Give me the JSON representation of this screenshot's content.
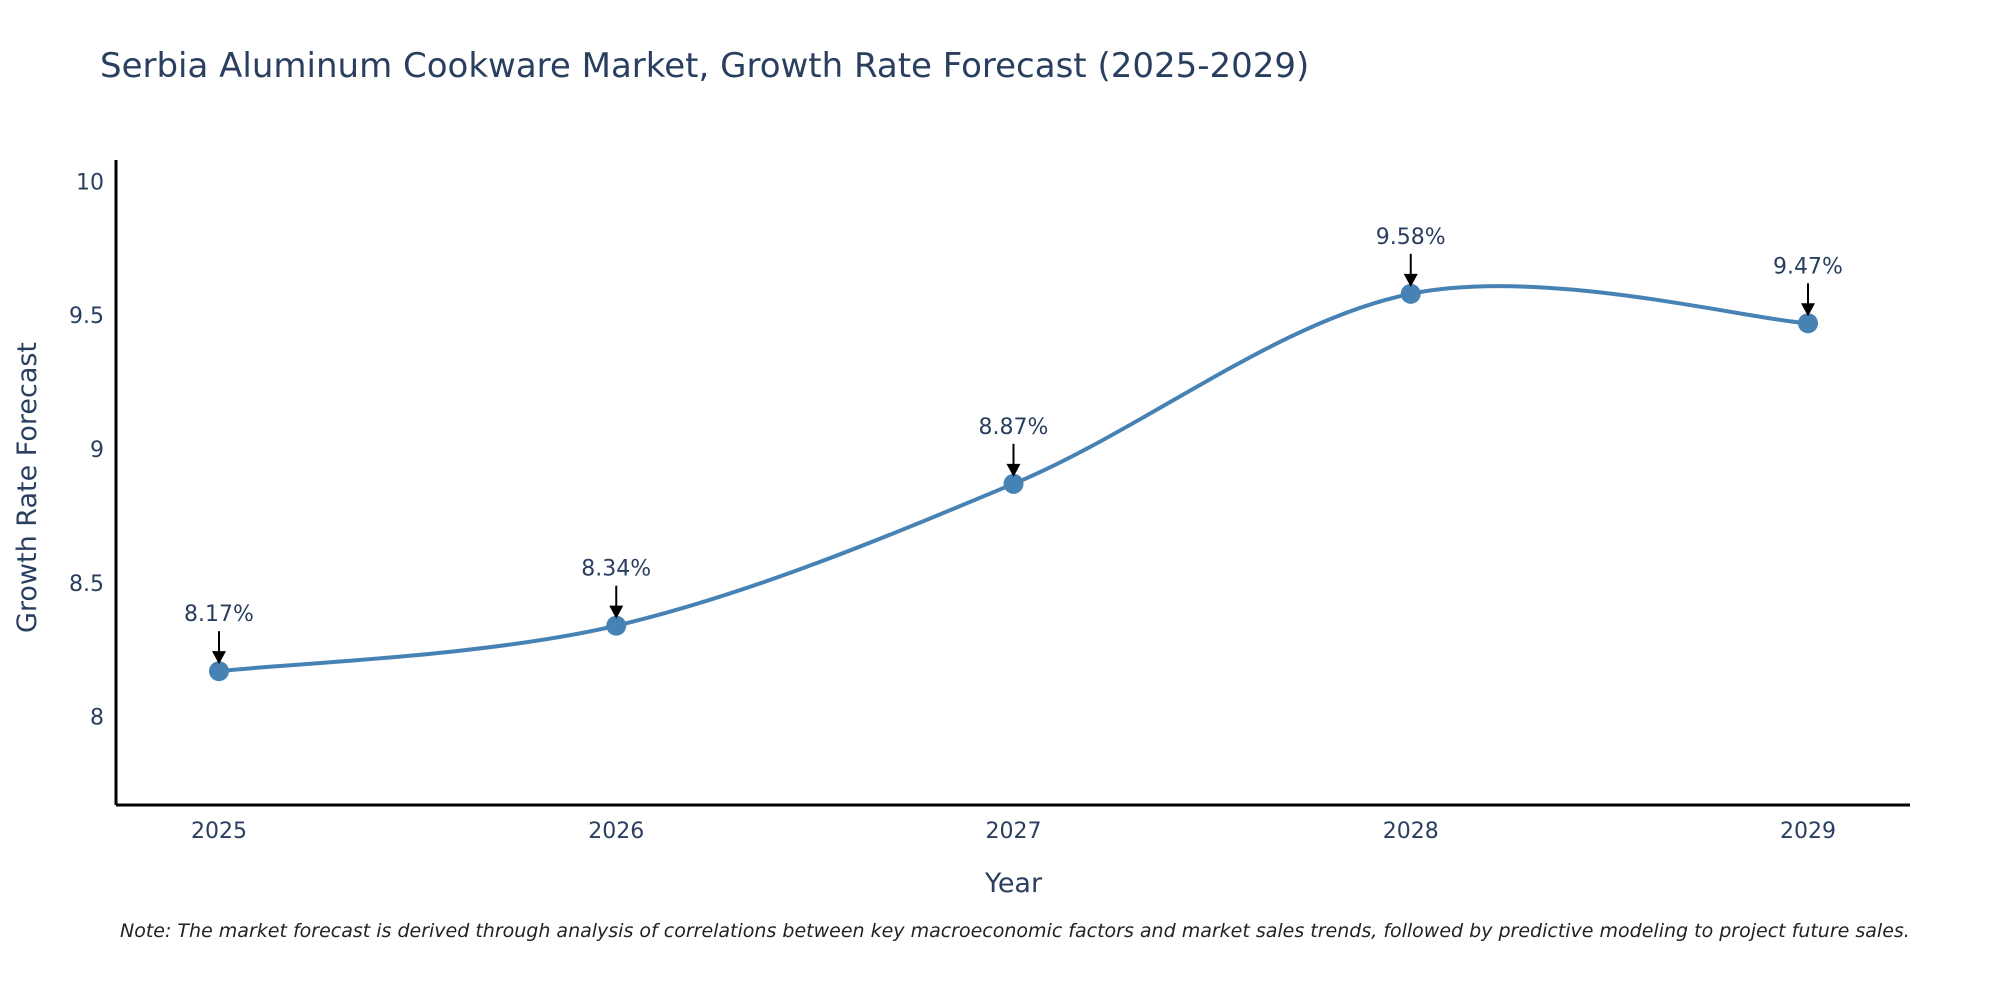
{
  "chart_data": {
    "type": "line",
    "title": "Serbia Aluminum Cookware Market, Growth Rate Forecast (2025-2029)",
    "xlabel": "Year",
    "ylabel": "Growth Rate Forecast",
    "x": [
      "2025",
      "2026",
      "2027",
      "2028",
      "2029"
    ],
    "values": [
      8.17,
      8.34,
      8.87,
      9.58,
      9.47
    ],
    "data_labels": [
      "8.17%",
      "8.34%",
      "8.87%",
      "9.58%",
      "9.47%"
    ],
    "ylim": [
      7.67,
      10.08
    ],
    "yticks": [
      8,
      8.5,
      9,
      9.5,
      10
    ],
    "ytick_labels": [
      "8",
      "8.5",
      "9",
      "9.5",
      "10"
    ],
    "grid": false,
    "line_shape": "spline",
    "note": "Note: The market forecast is derived through analysis of correlations between key macroeconomic factors and market sales trends, followed by predictive modeling to project future sales."
  },
  "colors": {
    "series": "#4682B4",
    "text": "#2a3f5f",
    "axis": "#000000",
    "arrow": "#000000"
  }
}
